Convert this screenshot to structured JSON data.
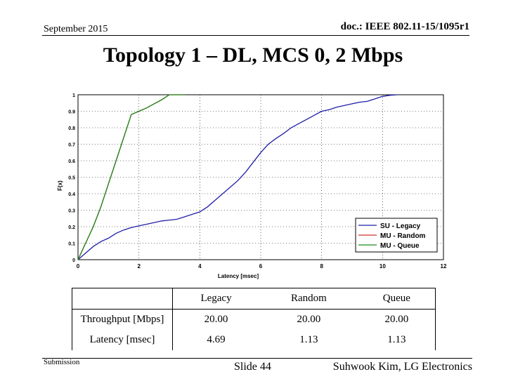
{
  "header": {
    "date": "September 2015",
    "doc_id": "doc.: IEEE 802.11-15/1095r1"
  },
  "slide_title": "Topology 1 – DL, MCS 0, 2 Mbps",
  "footer": {
    "left": "Submission",
    "center": "Slide 44",
    "right": "Suhwook Kim, LG Electronics"
  },
  "chart_data": {
    "type": "line",
    "title": "",
    "xlabel": "Latency [msec]",
    "ylabel": "F(x)",
    "xlim": [
      0,
      12
    ],
    "ylim": [
      0,
      1
    ],
    "xticks": [
      "0",
      "2",
      "4",
      "6",
      "8",
      "10",
      "12"
    ],
    "yticks": [
      "0",
      "0.1",
      "0.2",
      "0.3",
      "0.4",
      "0.5",
      "0.6",
      "0.7",
      "0.8",
      "0.9",
      "1"
    ],
    "grid": true,
    "legend_position": "bottom-right",
    "series": [
      {
        "name": "SU - Legacy",
        "color": "#1f1fa8",
        "x": [
          0,
          0.25,
          0.5,
          0.75,
          1.0,
          1.25,
          1.5,
          1.75,
          2.0,
          2.25,
          2.5,
          2.75,
          3.0,
          3.25,
          3.5,
          3.75,
          4.0,
          4.25,
          4.5,
          4.75,
          5.0,
          5.25,
          5.5,
          5.75,
          6.0,
          6.25,
          6.5,
          6.75,
          7.0,
          7.25,
          7.5,
          7.75,
          8.0,
          8.25,
          8.5,
          8.75,
          9.0,
          9.25,
          9.5,
          9.75,
          10.0,
          10.25,
          10.5
        ],
        "y": [
          0,
          0.04,
          0.08,
          0.11,
          0.13,
          0.16,
          0.18,
          0.195,
          0.205,
          0.215,
          0.225,
          0.235,
          0.24,
          0.245,
          0.26,
          0.275,
          0.29,
          0.32,
          0.36,
          0.4,
          0.44,
          0.48,
          0.53,
          0.59,
          0.65,
          0.7,
          0.735,
          0.765,
          0.8,
          0.825,
          0.85,
          0.875,
          0.9,
          0.91,
          0.925,
          0.935,
          0.945,
          0.955,
          0.96,
          0.975,
          0.99,
          0.997,
          1.0
        ]
      },
      {
        "name": "MU - Random",
        "color": "#d03030",
        "x": [
          0,
          0.25,
          0.5,
          0.75,
          1.0,
          1.25,
          1.5,
          1.75,
          2.0,
          2.25,
          2.5,
          2.75,
          3.0,
          3.25,
          3.5
        ],
        "y": [
          0,
          0.1,
          0.2,
          0.32,
          0.46,
          0.6,
          0.74,
          0.88,
          0.9,
          0.92,
          0.945,
          0.97,
          1.0,
          1.0,
          1.0
        ]
      },
      {
        "name": "MU - Queue",
        "color": "#1a8a1a",
        "x": [
          0,
          0.25,
          0.5,
          0.75,
          1.0,
          1.25,
          1.5,
          1.75,
          2.0,
          2.25,
          2.5,
          2.75,
          3.0,
          3.25,
          3.5
        ],
        "y": [
          0,
          0.1,
          0.2,
          0.32,
          0.46,
          0.6,
          0.74,
          0.88,
          0.9,
          0.92,
          0.945,
          0.97,
          1.0,
          1.0,
          1.0
        ]
      }
    ]
  },
  "table": {
    "columns": [
      "",
      "Legacy",
      "Random",
      "Queue"
    ],
    "rows": [
      {
        "label": "Throughput [Mbps]",
        "values": [
          "20.00",
          "20.00",
          "20.00"
        ]
      },
      {
        "label": "Latency [msec]",
        "values": [
          "4.69",
          "1.13",
          "1.13"
        ]
      }
    ]
  }
}
